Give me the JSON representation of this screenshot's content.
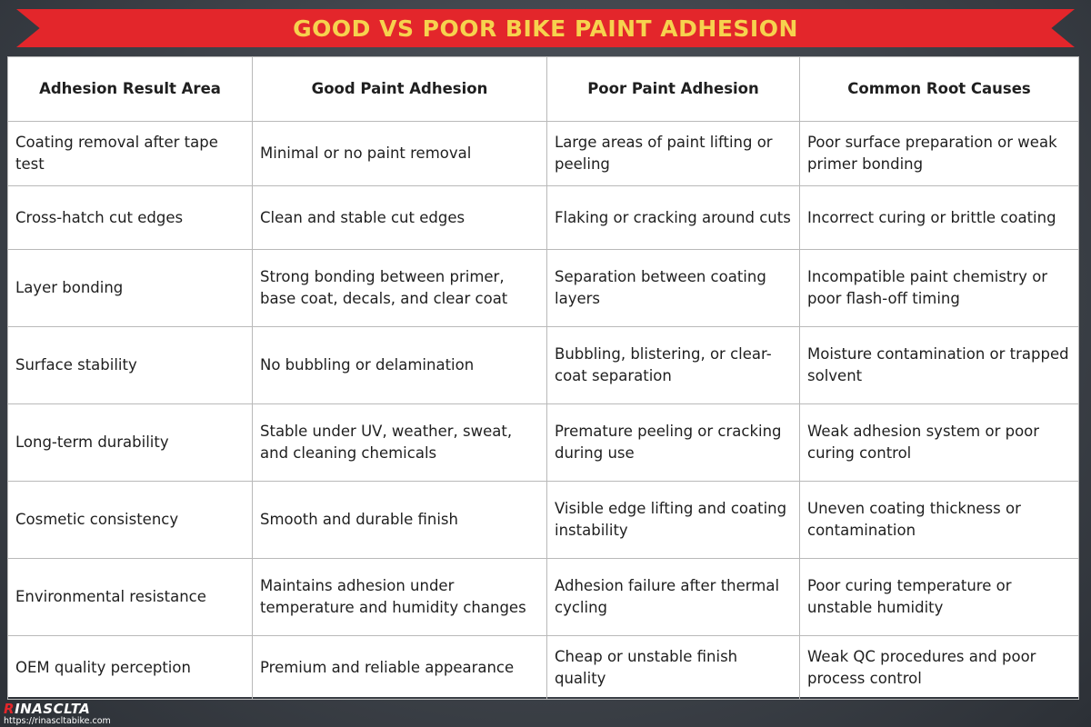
{
  "title": "GOOD VS POOR BIKE PAINT ADHESION",
  "colors": {
    "banner": "#e3262b",
    "title_text": "#f6d24e",
    "background": "#3f444b"
  },
  "table": {
    "headers": [
      "Adhesion Result Area",
      "Good Paint Adhesion",
      "Poor Paint Adhesion",
      "Common Root Causes"
    ],
    "rows": [
      [
        "Coating removal after tape test",
        "Minimal or no paint removal",
        "Large areas of paint lifting or peeling",
        "Poor surface preparation or weak primer bonding"
      ],
      [
        "Cross-hatch cut edges",
        "Clean and stable cut edges",
        "Flaking or cracking around cuts",
        "Incorrect curing or brittle coating"
      ],
      [
        "Layer bonding",
        "Strong bonding between primer, base coat, decals, and clear coat",
        "Separation between coating layers",
        "Incompatible paint chemistry or poor flash-off timing"
      ],
      [
        "Surface stability",
        "No bubbling or delamination",
        "Bubbling, blistering, or clear-coat separation",
        "Moisture contamination or trapped solvent"
      ],
      [
        "Long-term durability",
        "Stable under UV, weather, sweat, and cleaning chemicals",
        "Premature peeling or cracking during use",
        "Weak adhesion system or poor curing control"
      ],
      [
        "Cosmetic consistency",
        "Smooth and durable finish",
        "Visible edge lifting and coating instability",
        "Uneven coating thickness or contamination"
      ],
      [
        "Environmental resistance",
        "Maintains adhesion under temperature and humidity changes",
        "Adhesion failure after thermal cycling",
        "Poor curing temperature or unstable humidity"
      ],
      [
        "OEM quality perception",
        "Premium and reliable appearance",
        "Cheap or unstable finish quality",
        "Weak QC procedures and poor process control"
      ]
    ]
  },
  "brand": {
    "logo_first": "R",
    "logo_rest": "INASCLTA",
    "url": "https://rinascltabike.com"
  }
}
